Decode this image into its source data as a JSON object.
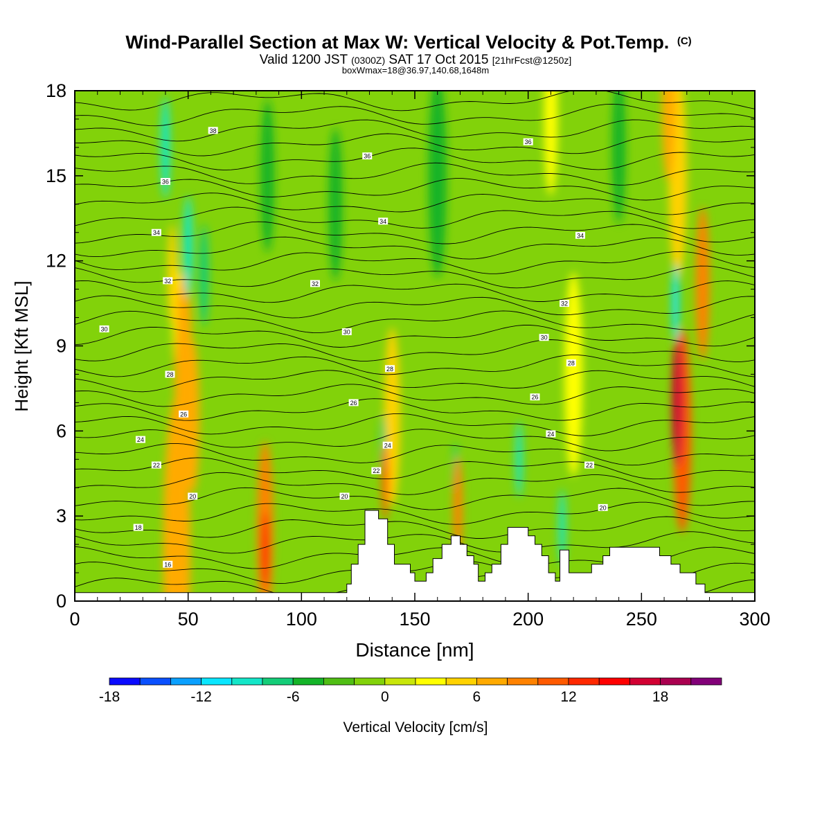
{
  "header": {
    "title_main": "Wind-Parallel Section at Max W: Vertical Velocity & Pot.Temp.",
    "title_mark": "(C)",
    "subtitle_a": "Valid 1200 JST",
    "subtitle_b": "(0300Z)",
    "subtitle_c": "SAT 17 Oct 2015",
    "subtitle_d": "[21hrFcst@1250z]",
    "subtitle2": "boxWmax=18@36.97,140.68,1648m"
  },
  "chart_data": {
    "type": "heatmap",
    "xlabel": "Distance [nm]",
    "ylabel": "Height [Kft MSL]",
    "xlim": [
      0,
      300
    ],
    "ylim": [
      0,
      18
    ],
    "x_ticks": [
      "0",
      "50",
      "100",
      "150",
      "200",
      "250",
      "300"
    ],
    "y_ticks": [
      "0",
      "3",
      "6",
      "9",
      "12",
      "15",
      "18"
    ],
    "colorbar": {
      "label": "Vertical Velocity [cm/s]",
      "range": [
        -18,
        22
      ],
      "tick_labels": [
        "-18",
        "-12",
        "-6",
        "0",
        "6",
        "12",
        "18"
      ],
      "colors": [
        "#0a0aff",
        "#0a50ff",
        "#0aa0ff",
        "#0ae6ff",
        "#14e6c8",
        "#14cd78",
        "#14b428",
        "#50be14",
        "#82d20a",
        "#c8e60a",
        "#ffff00",
        "#ffd200",
        "#ffaa00",
        "#ff8200",
        "#ff5a00",
        "#ff2800",
        "#ff0000",
        "#d20032",
        "#aa0050",
        "#820078"
      ]
    },
    "background_level": 0,
    "w_cells": [
      {
        "x": 45,
        "y": 10.0,
        "w": 2.0,
        "v": 3
      },
      {
        "x": 48,
        "y": 8.0,
        "w": 4.0,
        "v": 6
      },
      {
        "x": 43,
        "y": 11.5,
        "w": 2.0,
        "v": 5
      },
      {
        "x": 52,
        "y": 6.5,
        "w": 3.0,
        "v": 6
      },
      {
        "x": 45,
        "y": 1.8,
        "w": 6.0,
        "v": 7
      },
      {
        "x": 84,
        "y": 1.8,
        "w": 1.5,
        "v": 14
      },
      {
        "x": 84,
        "y": 2.5,
        "w": 3.5,
        "v": 9
      },
      {
        "x": 137,
        "y": 4.2,
        "w": 1.5,
        "v": 10
      },
      {
        "x": 140,
        "y": 6.5,
        "w": 3.5,
        "v": 4
      },
      {
        "x": 169,
        "y": 3.3,
        "w": 2.0,
        "v": 9
      },
      {
        "x": 266,
        "y": 7.0,
        "w": 2.5,
        "v": 17
      },
      {
        "x": 268,
        "y": 6.0,
        "w": 4.0,
        "v": 10
      },
      {
        "x": 262,
        "y": 17.5,
        "w": 3.0,
        "v": 7
      },
      {
        "x": 266,
        "y": 15.0,
        "w": 4.0,
        "v": 4
      },
      {
        "x": 277,
        "y": 11.2,
        "w": 3.0,
        "v": 8
      },
      {
        "x": 210,
        "y": 17.0,
        "w": 3.0,
        "v": 2
      },
      {
        "x": 220,
        "y": 8.0,
        "w": 4.0,
        "v": 2
      },
      {
        "x": 40,
        "y": 16.0,
        "w": 2.0,
        "v": -10
      },
      {
        "x": 50,
        "y": 12.5,
        "w": 2.0,
        "v": -9
      },
      {
        "x": 57,
        "y": 11.5,
        "w": 2.0,
        "v": -7
      },
      {
        "x": 85,
        "y": 15.0,
        "w": 3.0,
        "v": -5
      },
      {
        "x": 115,
        "y": 14.0,
        "w": 3.0,
        "v": -5
      },
      {
        "x": 160,
        "y": 15.0,
        "w": 4.0,
        "v": -5
      },
      {
        "x": 240,
        "y": 16.0,
        "w": 3.0,
        "v": -6
      },
      {
        "x": 265,
        "y": 10.5,
        "w": 1.5,
        "v": -12
      },
      {
        "x": 215,
        "y": 2.6,
        "w": 1.5,
        "v": -10
      },
      {
        "x": 196,
        "y": 5.0,
        "w": 1.5,
        "v": -9
      },
      {
        "x": 136,
        "y": 5.5,
        "w": 1.2,
        "v": -8
      },
      {
        "x": 168,
        "y": 4.5,
        "w": 1.2,
        "v": -7
      }
    ],
    "theta_contour_labels": [
      {
        "x": 61,
        "y": 16.6,
        "v": "38"
      },
      {
        "x": 40,
        "y": 14.8,
        "v": "36"
      },
      {
        "x": 36,
        "y": 13.0,
        "v": "34"
      },
      {
        "x": 41,
        "y": 11.3,
        "v": "32"
      },
      {
        "x": 13,
        "y": 9.6,
        "v": "30"
      },
      {
        "x": 42,
        "y": 8.0,
        "v": "28"
      },
      {
        "x": 48,
        "y": 6.6,
        "v": "26"
      },
      {
        "x": 29,
        "y": 5.7,
        "v": "24"
      },
      {
        "x": 36,
        "y": 4.8,
        "v": "22"
      },
      {
        "x": 52,
        "y": 3.7,
        "v": "20"
      },
      {
        "x": 28,
        "y": 2.6,
        "v": "18"
      },
      {
        "x": 41,
        "y": 1.3,
        "v": "16"
      },
      {
        "x": 129,
        "y": 15.7,
        "v": "36"
      },
      {
        "x": 136,
        "y": 13.4,
        "v": "34"
      },
      {
        "x": 106,
        "y": 11.2,
        "v": "32"
      },
      {
        "x": 120,
        "y": 9.5,
        "v": "30"
      },
      {
        "x": 139,
        "y": 8.2,
        "v": "28"
      },
      {
        "x": 123,
        "y": 7.0,
        "v": "26"
      },
      {
        "x": 138,
        "y": 5.5,
        "v": "24"
      },
      {
        "x": 133,
        "y": 4.6,
        "v": "22"
      },
      {
        "x": 119,
        "y": 3.7,
        "v": "20"
      },
      {
        "x": 200,
        "y": 16.2,
        "v": "36"
      },
      {
        "x": 223,
        "y": 12.9,
        "v": "34"
      },
      {
        "x": 216,
        "y": 10.5,
        "v": "32"
      },
      {
        "x": 207,
        "y": 9.3,
        "v": "30"
      },
      {
        "x": 219,
        "y": 8.4,
        "v": "28"
      },
      {
        "x": 203,
        "y": 7.2,
        "v": "26"
      },
      {
        "x": 210,
        "y": 5.9,
        "v": "24"
      },
      {
        "x": 227,
        "y": 4.8,
        "v": "22"
      },
      {
        "x": 233,
        "y": 3.3,
        "v": "20"
      }
    ],
    "terrain": [
      [
        0,
        0.3
      ],
      [
        120,
        0.3
      ],
      [
        120,
        0.6
      ],
      [
        122,
        0.6
      ],
      [
        122,
        1.3
      ],
      [
        125,
        1.3
      ],
      [
        125,
        2.0
      ],
      [
        128,
        2.0
      ],
      [
        128,
        3.2
      ],
      [
        134,
        3.2
      ],
      [
        134,
        2.9
      ],
      [
        138,
        2.9
      ],
      [
        138,
        2.0
      ],
      [
        141,
        2.0
      ],
      [
        141,
        1.3
      ],
      [
        148,
        1.3
      ],
      [
        148,
        1.0
      ],
      [
        150,
        1.0
      ],
      [
        150,
        0.7
      ],
      [
        155,
        0.7
      ],
      [
        155,
        1.0
      ],
      [
        158,
        1.0
      ],
      [
        158,
        1.5
      ],
      [
        162,
        1.5
      ],
      [
        162,
        2.0
      ],
      [
        166,
        2.0
      ],
      [
        166,
        2.3
      ],
      [
        170,
        2.3
      ],
      [
        170,
        2.0
      ],
      [
        173,
        2.0
      ],
      [
        173,
        1.6
      ],
      [
        176,
        1.6
      ],
      [
        176,
        1.3
      ],
      [
        178,
        1.3
      ],
      [
        178,
        0.7
      ],
      [
        181,
        0.7
      ],
      [
        181,
        1.0
      ],
      [
        184,
        1.0
      ],
      [
        184,
        1.3
      ],
      [
        188,
        1.3
      ],
      [
        188,
        2.0
      ],
      [
        191,
        2.0
      ],
      [
        191,
        2.6
      ],
      [
        200,
        2.6
      ],
      [
        200,
        2.3
      ],
      [
        203,
        2.3
      ],
      [
        203,
        2.0
      ],
      [
        206,
        2.0
      ],
      [
        206,
        1.6
      ],
      [
        209,
        1.6
      ],
      [
        209,
        1.0
      ],
      [
        212,
        1.0
      ],
      [
        212,
        0.7
      ],
      [
        214,
        0.7
      ],
      [
        214,
        1.8
      ],
      [
        218,
        1.8
      ],
      [
        218,
        1.0
      ],
      [
        228,
        1.0
      ],
      [
        228,
        1.3
      ],
      [
        233,
        1.3
      ],
      [
        233,
        1.6
      ],
      [
        236,
        1.6
      ],
      [
        236,
        1.9
      ],
      [
        240,
        1.9
      ],
      [
        240,
        1.9
      ],
      [
        258,
        1.9
      ],
      [
        258,
        1.6
      ],
      [
        263,
        1.6
      ],
      [
        263,
        1.3
      ],
      [
        267,
        1.3
      ],
      [
        267,
        1.0
      ],
      [
        274,
        1.0
      ],
      [
        274,
        0.6
      ],
      [
        278,
        0.6
      ],
      [
        278,
        0.3
      ],
      [
        300,
        0.3
      ]
    ]
  }
}
